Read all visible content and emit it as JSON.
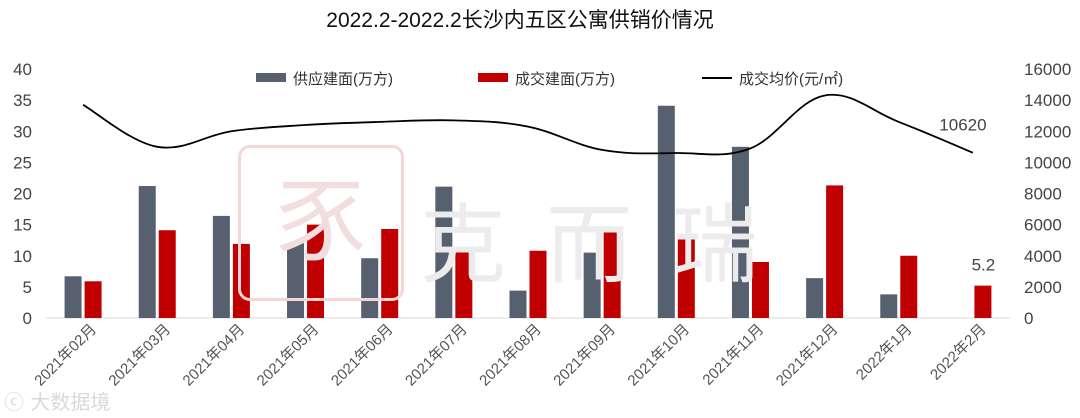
{
  "chart_data": {
    "type": "bar",
    "title": "2022.2-2022.2长沙内五区公寓供销价情况",
    "categories": [
      "2021年02月",
      "2021年03月",
      "2021年04月",
      "2021年05月",
      "2021年06月",
      "2021年07月",
      "2021年08月",
      "2021年09月",
      "2021年10月",
      "2021年11月",
      "2021年12月",
      "2022年1月",
      "2022年2月"
    ],
    "series": [
      {
        "name": "供应建面(万方)",
        "axis": "left",
        "color": "#56606e",
        "values": [
          6.7,
          21.2,
          16.4,
          12.0,
          9.6,
          21.1,
          4.4,
          10.5,
          34.1,
          27.5,
          6.4,
          3.8,
          null
        ]
      },
      {
        "name": "成交建面(万方)",
        "axis": "left",
        "color": "#c00000",
        "values": [
          5.9,
          14.1,
          11.9,
          15.0,
          14.3,
          11.2,
          10.8,
          14.4,
          12.8,
          9.0,
          21.3,
          10.0,
          5.2
        ]
      },
      {
        "name": "成交均价(元/㎡)",
        "axis": "right",
        "type": "line",
        "color": "#000000",
        "values": [
          13700,
          11000,
          12000,
          12400,
          12600,
          12700,
          12300,
          10800,
          10600,
          10900,
          14300,
          12600,
          10620
        ]
      }
    ],
    "y_left": {
      "min": 0,
      "max": 40,
      "ticks": [
        "0",
        "5",
        "10",
        "15",
        "20",
        "25",
        "30",
        "35",
        "40"
      ]
    },
    "y_right": {
      "min": 0,
      "max": 16000,
      "ticks": [
        "0",
        "2000",
        "4000",
        "6000",
        "8000",
        "10000",
        "12000",
        "14000",
        "16000"
      ]
    },
    "data_labels": [
      {
        "series": 2,
        "index": 12,
        "text": "10620"
      },
      {
        "series": 1,
        "index": 12,
        "text": "5.2"
      }
    ],
    "legend_position": "top"
  },
  "watermark": {
    "logo_text": "豕",
    "brand_text": "克而瑞",
    "source_text": "ⓒ 大数据境"
  }
}
